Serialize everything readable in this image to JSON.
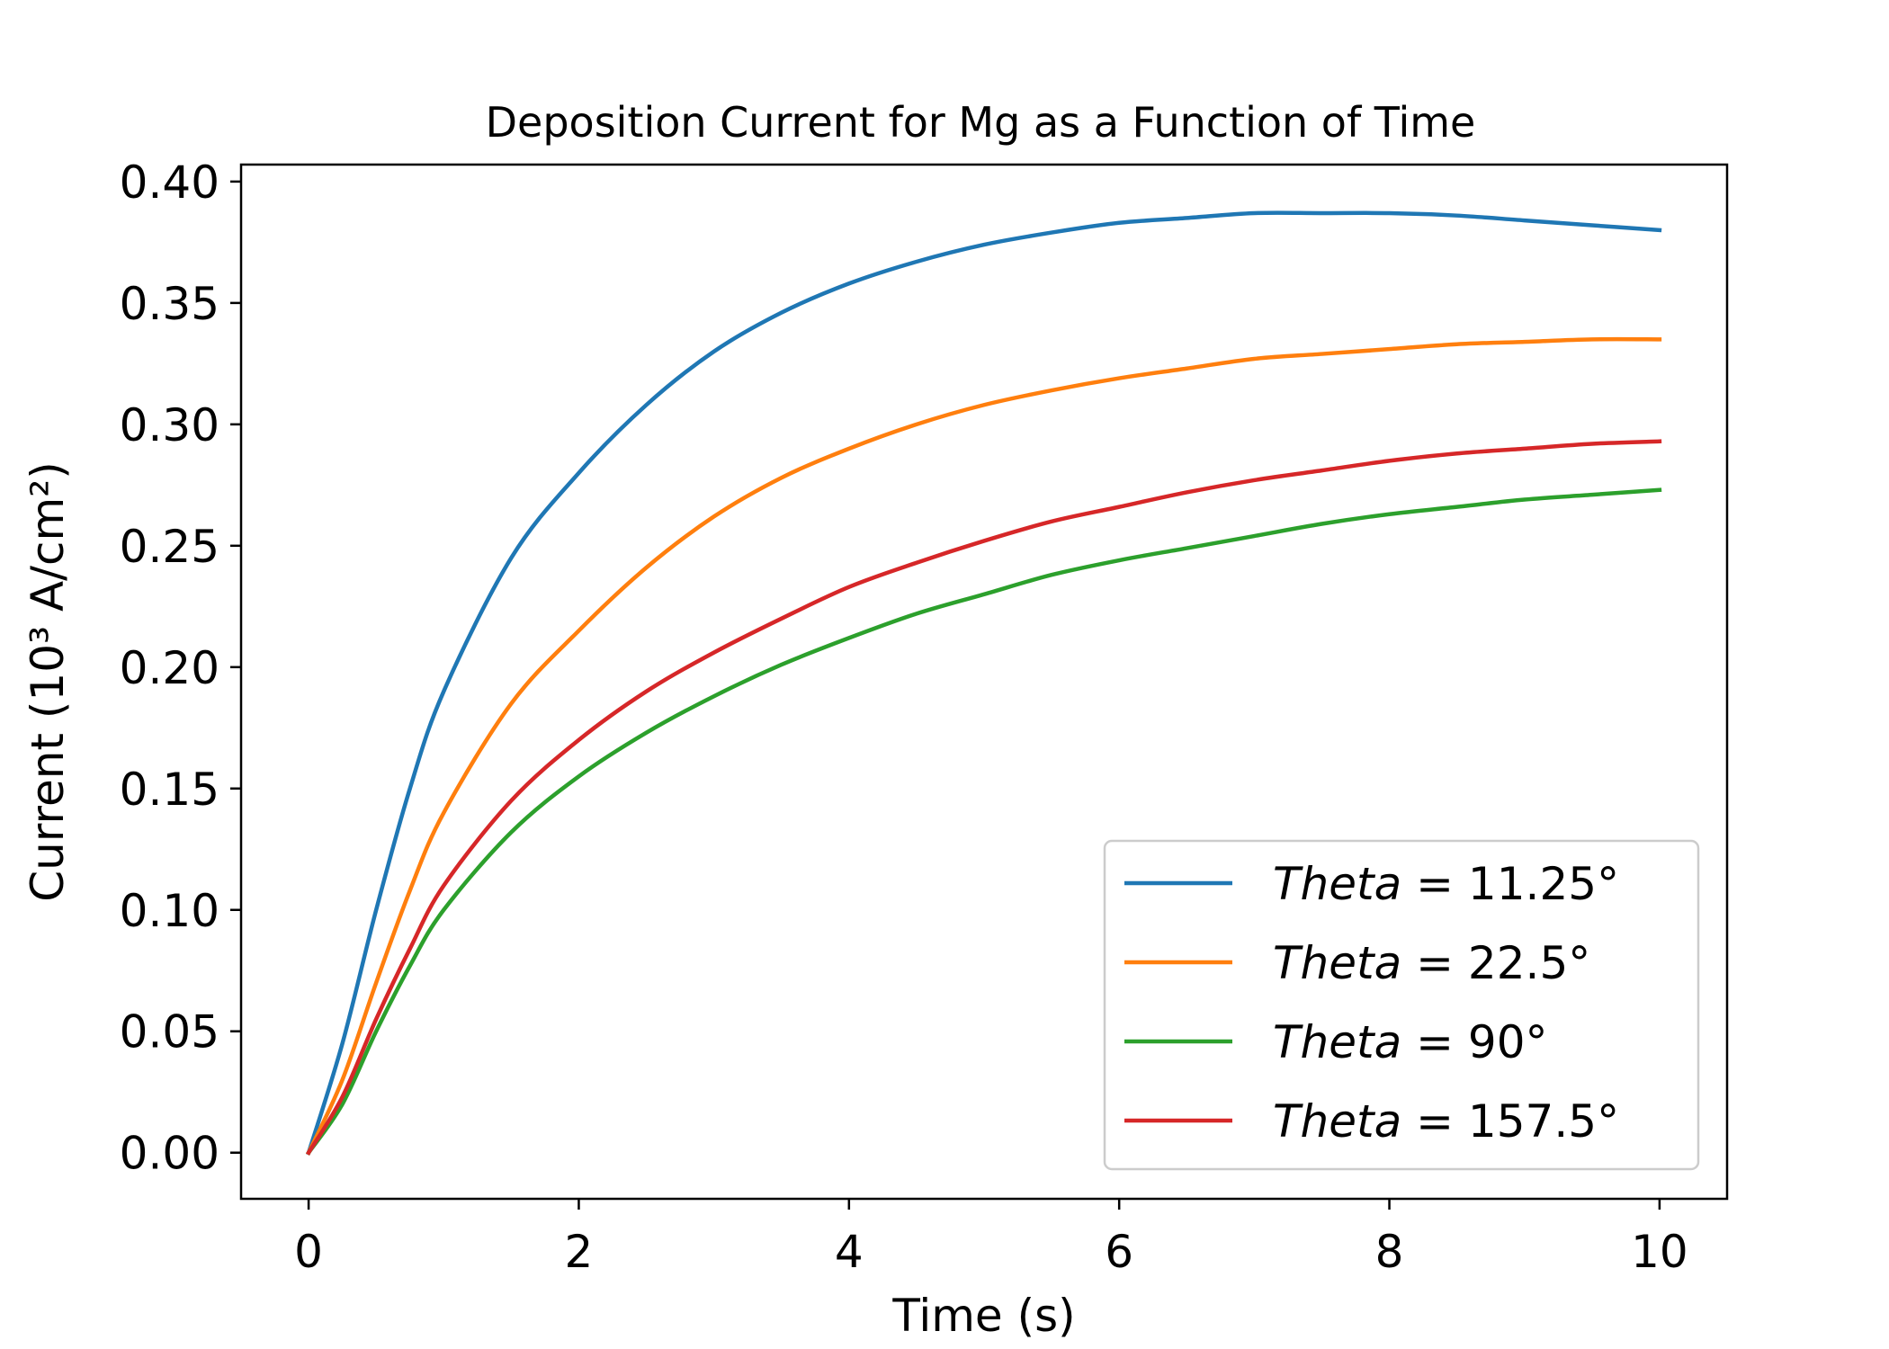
{
  "chart_data": {
    "type": "line",
    "title": "Deposition Current for Mg as a Function of Time",
    "xlabel": "Time (s)",
    "ylabel": "Current (10³ A/cm²)",
    "xlim": [
      -0.5,
      10.5
    ],
    "ylim": [
      -0.019,
      0.407
    ],
    "xticks": [
      0,
      2,
      4,
      6,
      8,
      10
    ],
    "yticks": [
      0.0,
      0.05,
      0.1,
      0.15,
      0.2,
      0.25,
      0.3,
      0.35,
      0.4
    ],
    "xtick_labels": [
      "0",
      "2",
      "4",
      "6",
      "8",
      "10"
    ],
    "ytick_labels": [
      "0.00",
      "0.05",
      "0.10",
      "0.15",
      "0.20",
      "0.25",
      "0.30",
      "0.35",
      "0.40"
    ],
    "grid": false,
    "legend_position": "lower-right",
    "x": [
      0,
      0.25,
      0.5,
      0.75,
      1,
      1.5,
      2,
      2.5,
      3,
      3.5,
      4,
      4.5,
      5,
      5.5,
      6,
      6.5,
      7,
      7.5,
      8,
      8.5,
      9,
      9.5,
      10
    ],
    "series": [
      {
        "name": "Theta = 11.25°",
        "name_italic": "Theta",
        "name_rest": " = 11.25°",
        "color": "#1f77b4",
        "values": [
          0.0,
          0.045,
          0.1,
          0.15,
          0.19,
          0.245,
          0.28,
          0.308,
          0.33,
          0.346,
          0.358,
          0.367,
          0.374,
          0.379,
          0.383,
          0.385,
          0.387,
          0.387,
          0.387,
          0.386,
          0.384,
          0.382,
          0.38
        ]
      },
      {
        "name": "Theta = 22.5°",
        "name_italic": "Theta",
        "name_rest": " = 22.5°",
        "color": "#ff7f0e",
        "values": [
          0.0,
          0.03,
          0.07,
          0.108,
          0.14,
          0.185,
          0.215,
          0.241,
          0.262,
          0.278,
          0.29,
          0.3,
          0.308,
          0.314,
          0.319,
          0.323,
          0.327,
          0.329,
          0.331,
          0.333,
          0.334,
          0.335,
          0.335
        ]
      },
      {
        "name": "Theta = 90°",
        "name_italic": "Theta",
        "name_rest": " = 90°",
        "color": "#2ca02c",
        "values": [
          0.0,
          0.02,
          0.05,
          0.077,
          0.1,
          0.132,
          0.155,
          0.173,
          0.188,
          0.201,
          0.212,
          0.222,
          0.23,
          0.238,
          0.244,
          0.249,
          0.254,
          0.259,
          0.263,
          0.266,
          0.269,
          0.271,
          0.273
        ]
      },
      {
        "name": "Theta = 157.5°",
        "name_italic": "Theta",
        "name_rest": " = 157.5°",
        "color": "#d62728",
        "values": [
          0.0,
          0.023,
          0.055,
          0.084,
          0.11,
          0.145,
          0.17,
          0.19,
          0.206,
          0.22,
          0.233,
          0.243,
          0.252,
          0.26,
          0.266,
          0.272,
          0.277,
          0.281,
          0.285,
          0.288,
          0.29,
          0.292,
          0.293
        ]
      }
    ]
  }
}
